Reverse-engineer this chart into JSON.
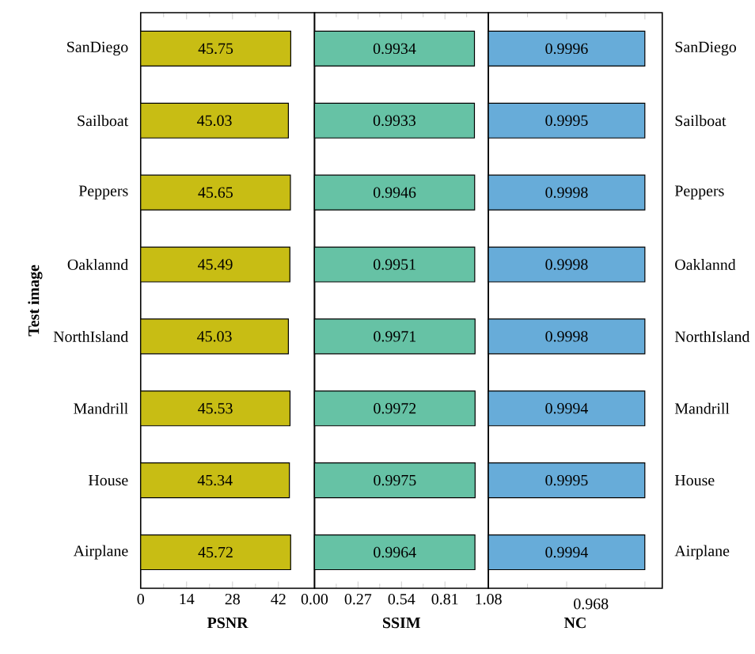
{
  "chart_data": [
    {
      "type": "bar",
      "orientation": "horizontal",
      "ylabel": "Test image",
      "xlabel": "PSNR",
      "categories": [
        "SanDiego",
        "Sailboat",
        "Peppers",
        "Oaklannd",
        "NorthIsland",
        "Mandrill",
        "House",
        "Airplane"
      ],
      "values": [
        45.75,
        45.03,
        45.65,
        45.49,
        45.03,
        45.53,
        45.34,
        45.72
      ],
      "color": "#c8bd14",
      "xlim": [
        0,
        53
      ],
      "xticks": [
        0,
        14,
        28,
        42
      ],
      "data_labels": true
    },
    {
      "type": "bar",
      "orientation": "horizontal",
      "xlabel": "SSIM",
      "categories": [
        null,
        null,
        null,
        null,
        null,
        null,
        null,
        null
      ],
      "values": [
        0.9934,
        0.9933,
        0.9946,
        0.9951,
        0.9971,
        0.9972,
        0.9975,
        0.9964
      ],
      "color": "#66c2a5",
      "xlim": [
        0,
        1.08
      ],
      "xticks": [
        {
          "value": 0,
          "label": "0.00"
        },
        {
          "value": 0.27,
          "label": "0.27"
        },
        {
          "value": 0.54,
          "label": "0.54"
        },
        {
          "value": 0.81,
          "label": "0.81"
        },
        {
          "value": 1.08,
          "label": "1.08"
        }
      ],
      "tick_labels": "x",
      "data_labels": true
    },
    {
      "type": "bar",
      "orientation": "horizontal",
      "xlabel": "NC",
      "categories": [
        "SanDiego",
        "Sailboat",
        "Peppers",
        "Oaklannd",
        "NorthIsland",
        "Mandrill",
        "House",
        "Airplane"
      ],
      "values": [
        0.9996,
        0.9995,
        0.9998,
        0.9998,
        0.9998,
        0.9994,
        0.9995,
        0.9994
      ],
      "color": "#67acd9",
      "annotations": [
        "0.968"
      ],
      "data_labels": true
    }
  ]
}
